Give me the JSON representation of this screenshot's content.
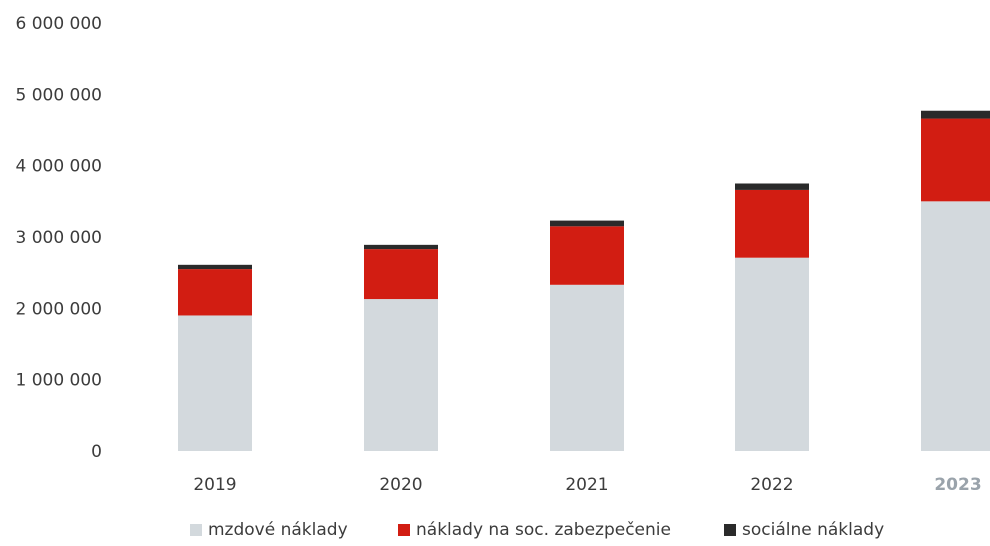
{
  "chart_data": {
    "type": "bar",
    "stacked": true,
    "categories": [
      "2019",
      "2020",
      "2021",
      "2022",
      "2023"
    ],
    "series": [
      {
        "name": "mzdové náklady",
        "color": "#d3d9dd",
        "values": [
          1900000,
          2130000,
          2330000,
          2710000,
          3500000
        ]
      },
      {
        "name": "náklady na soc. zabezpečenie",
        "color": "#d21d12",
        "values": [
          650000,
          700000,
          820000,
          950000,
          1160000
        ]
      },
      {
        "name": "sociálne náklady",
        "color": "#2a2a2a",
        "values": [
          60000,
          60000,
          80000,
          90000,
          110000
        ]
      }
    ],
    "yticks": [
      "0",
      "1 000 000",
      "2 000 000",
      "3 000 000",
      "4 000 000",
      "5 000 000",
      "6 000 000"
    ],
    "ylim": [
      0,
      6000000
    ],
    "grid": false,
    "legend": "bottom"
  }
}
